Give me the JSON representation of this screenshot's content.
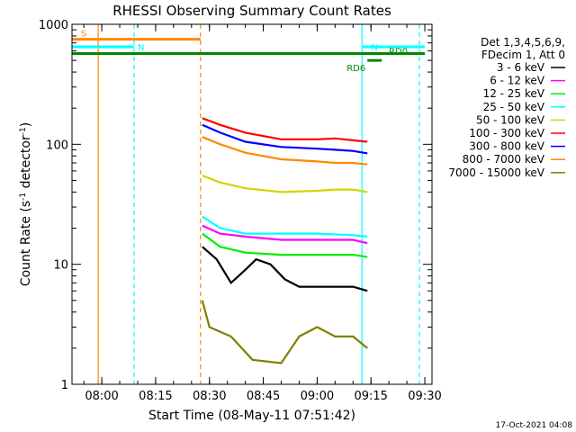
{
  "chart_data": {
    "type": "line",
    "title": "RHESSI Observing Summary Count Rates",
    "xlabel": "Start Time (08-May-11 07:51:42)",
    "ylabel_main": "Count Rate (s",
    "ylabel_sup1": "-1",
    "ylabel_mid": " detector",
    "ylabel_sup2": "-1",
    "ylabel_end": ")",
    "y_scale": "log",
    "ylim": [
      1,
      1000
    ],
    "xlim": [
      "07:51:42",
      "09:32:00"
    ],
    "x_ticks": [
      "08:00",
      "08:15",
      "08:30",
      "08:45",
      "09:00",
      "09:15",
      "09:30"
    ],
    "y_ticks": [
      {
        "value": 1,
        "label": "1"
      },
      {
        "value": 10,
        "label": "10"
      },
      {
        "value": 100,
        "label": "100"
      },
      {
        "value": 1000,
        "label": "1000"
      }
    ],
    "grid": false,
    "legend_position": "right",
    "legend_header": [
      "Det 1,3,4,5,6,9,",
      "FDecim 1, Att 0"
    ],
    "series": [
      {
        "name": "3 - 6 keV",
        "color": "#000000",
        "points": [
          [
            "08:28",
            14
          ],
          [
            "08:32",
            11
          ],
          [
            "08:36",
            7
          ],
          [
            "08:40",
            9
          ],
          [
            "08:43",
            11
          ],
          [
            "08:47",
            10
          ],
          [
            "08:51",
            7.5
          ],
          [
            "08:55",
            6.5
          ],
          [
            "09:00",
            6.5
          ],
          [
            "09:05",
            6.5
          ],
          [
            "09:10",
            6.5
          ],
          [
            "09:14",
            6
          ]
        ]
      },
      {
        "name": "6 - 12 keV",
        "color": "#ff00ff",
        "points": [
          [
            "08:28",
            21
          ],
          [
            "08:33",
            18
          ],
          [
            "08:40",
            17
          ],
          [
            "08:50",
            16
          ],
          [
            "09:00",
            16
          ],
          [
            "09:10",
            16
          ],
          [
            "09:14",
            15
          ]
        ]
      },
      {
        "name": "12 - 25 keV",
        "color": "#00ee00",
        "points": [
          [
            "08:28",
            18
          ],
          [
            "08:33",
            14
          ],
          [
            "08:40",
            12.5
          ],
          [
            "08:50",
            12
          ],
          [
            "09:00",
            12
          ],
          [
            "09:10",
            12
          ],
          [
            "09:14",
            11.5
          ]
        ]
      },
      {
        "name": "25 - 50 keV",
        "color": "#00ffff",
        "points": [
          [
            "08:28",
            25
          ],
          [
            "08:33",
            20
          ],
          [
            "08:40",
            18
          ],
          [
            "08:50",
            18
          ],
          [
            "09:00",
            18
          ],
          [
            "09:10",
            17.5
          ],
          [
            "09:14",
            17
          ]
        ]
      },
      {
        "name": "50 - 100 keV",
        "color": "#d4d400",
        "points": [
          [
            "08:28",
            55
          ],
          [
            "08:33",
            48
          ],
          [
            "08:40",
            43
          ],
          [
            "08:50",
            40
          ],
          [
            "09:00",
            41
          ],
          [
            "09:05",
            42
          ],
          [
            "09:10",
            42
          ],
          [
            "09:14",
            40
          ]
        ]
      },
      {
        "name": "100 - 300 keV",
        "color": "#ff0000",
        "points": [
          [
            "08:28",
            165
          ],
          [
            "08:33",
            145
          ],
          [
            "08:40",
            125
          ],
          [
            "08:50",
            110
          ],
          [
            "09:00",
            110
          ],
          [
            "09:05",
            112
          ],
          [
            "09:10",
            108
          ],
          [
            "09:14",
            105
          ]
        ]
      },
      {
        "name": "300 - 800 keV",
        "color": "#0000ff",
        "points": [
          [
            "08:28",
            145
          ],
          [
            "08:33",
            125
          ],
          [
            "08:40",
            105
          ],
          [
            "08:50",
            95
          ],
          [
            "09:00",
            92
          ],
          [
            "09:05",
            90
          ],
          [
            "09:10",
            88
          ],
          [
            "09:14",
            84
          ]
        ]
      },
      {
        "name": "800 - 7000 keV",
        "color": "#ff8800",
        "points": [
          [
            "08:28",
            115
          ],
          [
            "08:33",
            100
          ],
          [
            "08:40",
            85
          ],
          [
            "08:50",
            75
          ],
          [
            "09:00",
            72
          ],
          [
            "09:05",
            70
          ],
          [
            "09:10",
            70
          ],
          [
            "09:14",
            68
          ]
        ]
      },
      {
        "name": "7000 - 15000 keV",
        "color": "#808000",
        "points": [
          [
            "08:28",
            5
          ],
          [
            "08:30",
            3
          ],
          [
            "08:36",
            2.5
          ],
          [
            "08:42",
            1.6
          ],
          [
            "08:50",
            1.5
          ],
          [
            "08:55",
            2.5
          ],
          [
            "09:00",
            3
          ],
          [
            "09:05",
            2.5
          ],
          [
            "09:10",
            2.5
          ],
          [
            "09:14",
            2
          ]
        ]
      }
    ],
    "annotations": [
      {
        "label": "S",
        "color": "#ff8800",
        "y": 750,
        "x_start": "07:51:42",
        "x_end": "08:27:30"
      },
      {
        "label": "N",
        "color": "#00ffff",
        "y": 650,
        "x_start": "07:51:42",
        "x_end": "08:09:00"
      },
      {
        "label": "N",
        "color": "#00ffff",
        "y": 650,
        "x_start": "09:12:30",
        "x_end": "09:30:00"
      },
      {
        "label": "RD0",
        "color": "#008800",
        "y": 570,
        "x_start": "07:51:42",
        "x_end": "09:30:00"
      },
      {
        "label": "RD6",
        "color": "#008800",
        "y": 500,
        "x_start": "09:14:00",
        "x_end": "09:18:00"
      }
    ],
    "vertical_markers": [
      {
        "x": "07:59:00",
        "color": "#ff8800",
        "style": "solid"
      },
      {
        "x": "08:09:00",
        "color": "#00ffff",
        "style": "dashed"
      },
      {
        "x": "08:27:30",
        "color": "#ff8800",
        "style": "dashed"
      },
      {
        "x": "09:12:30",
        "color": "#00ffff",
        "style": "solid"
      },
      {
        "x": "09:28:30",
        "color": "#00ffff",
        "style": "dashed"
      }
    ],
    "timestamp": "17-Oct-2021 04:08"
  }
}
